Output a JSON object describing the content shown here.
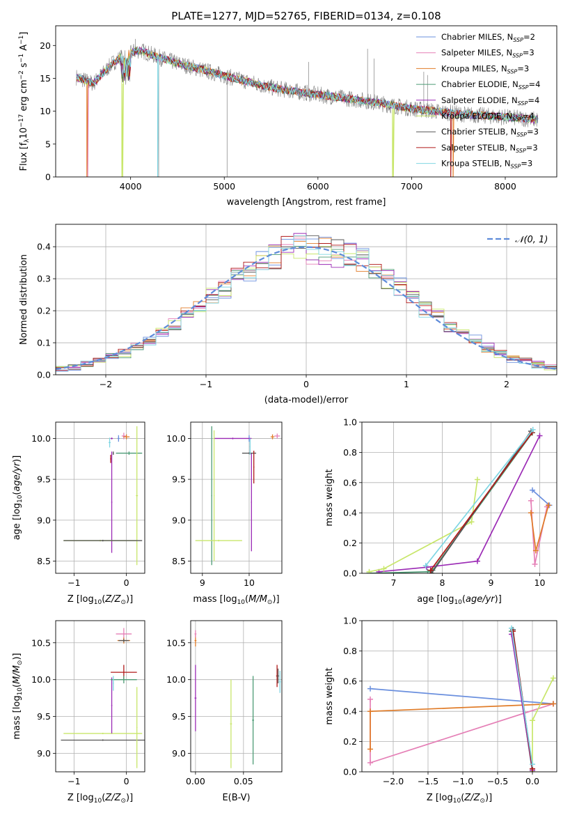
{
  "figure": {
    "title": "PLATE=1277, MJD=52765, FIBERID=0134, z=0.108"
  },
  "colors": {
    "Chabrier MILES": "#6a8fde",
    "Salpeter MILES": "#e57fb6",
    "Kroupa MILES": "#e07b27",
    "Chabrier ELODIE": "#4c9b75",
    "Salpeter ELODIE": "#9b2ab5",
    "Kroupa ELODIE": "#c8e66a",
    "Chabrier STELIB": "#555555",
    "Salpeter STELIB": "#b01818",
    "Kroupa STELIB": "#7fd6e3",
    "data": "#808080",
    "normal": "#5e8bd9"
  },
  "chart_data": [
    {
      "id": "spectrum",
      "type": "line",
      "xlabel": "wavelength [Angstrom, rest frame]",
      "ylabel": "Flux [f_λ 10^-17 erg cm^-2 s^-1 A^-1]",
      "xlim": [
        3200,
        8550
      ],
      "ylim": [
        0,
        23
      ],
      "xticks": [
        4000,
        5000,
        6000,
        7000,
        8000
      ],
      "yticks": [
        0,
        5,
        10,
        15,
        20
      ],
      "legend_position": "upper right",
      "legend": [
        {
          "main": "Chabrier MILES, N",
          "sub": "SSP",
          "tail": "=2",
          "series": "Chabrier MILES"
        },
        {
          "main": "Salpeter MILES, N",
          "sub": "SSP",
          "tail": "=3",
          "series": "Salpeter MILES"
        },
        {
          "main": "Kroupa MILES, N",
          "sub": "SSP",
          "tail": "=3",
          "series": "Kroupa MILES"
        },
        {
          "main": "Chabrier ELODIE, N",
          "sub": "SSP",
          "tail": "=4",
          "series": "Chabrier ELODIE"
        },
        {
          "main": "Salpeter ELODIE, N",
          "sub": "SSP",
          "tail": "=4",
          "series": "Salpeter ELODIE"
        },
        {
          "main": "Kroupa ELODIE, N",
          "sub": "SSP",
          "tail": "=4",
          "series": "Kroupa ELODIE"
        },
        {
          "main": "Chabrier STELIB, N",
          "sub": "SSP",
          "tail": "=3",
          "series": "Chabrier STELIB"
        },
        {
          "main": "Salpeter STELIB, N",
          "sub": "SSP",
          "tail": "=3",
          "series": "Salpeter STELIB"
        },
        {
          "main": "Kroupa STELIB, N",
          "sub": "SSP",
          "tail": "=3",
          "series": "Kroupa STELIB"
        }
      ],
      "continuum": {
        "x": [
          3420,
          3600,
          3800,
          3950,
          4100,
          4300,
          4500,
          5000,
          5500,
          6000,
          6500,
          7000,
          7500,
          8000,
          8350
        ],
        "y": [
          15.2,
          14.2,
          17.2,
          18.8,
          19.3,
          18.2,
          17.3,
          15.4,
          13.6,
          12.5,
          11.6,
          10.4,
          9.6,
          9.1,
          8.7
        ]
      },
      "data_spikes": [
        {
          "x": 5030,
          "y": 0
        },
        {
          "x": 4300,
          "y": 0
        },
        {
          "x": 6530,
          "y": 19.5
        },
        {
          "x": 6600,
          "y": 18
        },
        {
          "x": 7130,
          "y": 16
        },
        {
          "x": 7170,
          "y": 15.5
        },
        {
          "x": 4050,
          "y": 21
        },
        {
          "x": 5900,
          "y": 17.5
        }
      ],
      "model_drops": [
        {
          "series": "Salpeter MILES",
          "x": 3540,
          "y": 0
        },
        {
          "series": "Kroupa MILES",
          "x": 3530,
          "y": 0
        },
        {
          "series": "Kroupa ELODIE",
          "x": 3910,
          "y": 0
        },
        {
          "series": "Kroupa STELIB",
          "x": 4290,
          "y": 0
        },
        {
          "series": "Kroupa ELODIE",
          "x": 6800,
          "y": 0
        },
        {
          "series": "Salpeter STELIB",
          "x": 7420,
          "y": 0
        },
        {
          "series": "Kroupa MILES",
          "x": 7440,
          "y": 0
        }
      ]
    },
    {
      "id": "residuals",
      "type": "line",
      "xlabel": "(data-model)/error",
      "ylabel": "Normed distribution",
      "xlim": [
        -2.5,
        2.5
      ],
      "ylim": [
        0,
        0.47
      ],
      "xticks": [
        -2,
        -1,
        0,
        1,
        2
      ],
      "yticks": [
        0.0,
        0.1,
        0.2,
        0.3,
        0.4
      ],
      "legend": "𝒩(0, 1)",
      "legend_position": "upper right",
      "histogram_bins": 40,
      "normal_curve": {
        "mean": 0,
        "sigma": 1
      }
    },
    {
      "id": "age_vs_Z",
      "type": "scatter",
      "xlabel": "Z [log10(Z/Z⊙)]",
      "ylabel": "age [log10(age/yr)]",
      "xlim": [
        -1.35,
        0.35
      ],
      "ylim": [
        8.35,
        10.2
      ],
      "xticks": [
        -1,
        0
      ],
      "yticks": [
        8.5,
        9.0,
        9.5,
        10.0
      ],
      "points": [
        {
          "series": "Chabrier MILES",
          "x": -0.15,
          "y": 10.0,
          "xerr": 0.02,
          "yerr": 0.04
        },
        {
          "series": "Salpeter MILES",
          "x": -0.05,
          "y": 10.03,
          "xerr": 0.04,
          "yerr": 0.04
        },
        {
          "series": "Kroupa MILES",
          "x": 0.0,
          "y": 10.02,
          "xerr": 0.06,
          "yerr": 0.03
        },
        {
          "series": "Chabrier ELODIE",
          "x": 0.05,
          "y": 9.82,
          "xerr": 0.25,
          "yerr": 0.02
        },
        {
          "series": "Salpeter ELODIE",
          "x": -0.28,
          "y": 10.0,
          "xerr": 0.02,
          "yerr": 0.01
        },
        {
          "series": "Salpeter ELODIE",
          "x": -0.28,
          "y": 9.22,
          "xerr": 0.01,
          "yerr": 0.62
        },
        {
          "series": "Kroupa ELODIE",
          "x": 0.2,
          "y": 9.3,
          "xerr": 0.02,
          "yerr": 0.85
        },
        {
          "series": "Kroupa ELODIE",
          "x": -0.5,
          "y": 8.75,
          "xerr": 0.7,
          "yerr": 0.01
        },
        {
          "series": "Chabrier STELIB",
          "x": -0.45,
          "y": 8.75,
          "xerr": 0.75,
          "yerr": 0.01
        },
        {
          "series": "Chabrier STELIB",
          "x": -0.25,
          "y": 9.82,
          "xerr": 0.01,
          "yerr": 0.02
        },
        {
          "series": "Salpeter STELIB",
          "x": -0.3,
          "y": 9.75,
          "xerr": 0.01,
          "yerr": 0.05
        },
        {
          "series": "Kroupa STELIB",
          "x": -0.32,
          "y": 9.95,
          "xerr": 0.02,
          "yerr": 0.06
        }
      ]
    },
    {
      "id": "age_vs_mass",
      "type": "scatter",
      "xlabel": "mass [log10(M/M⊙)]",
      "ylabel": "",
      "xlim": [
        8.75,
        10.7
      ],
      "ylim": [
        8.35,
        10.2
      ],
      "xticks": [
        9,
        10
      ],
      "yticks": [
        8.5,
        9.0,
        9.5,
        10.0
      ],
      "points": [
        {
          "series": "Chabrier MILES",
          "x": 10.0,
          "y": 10.0,
          "xerr": 0.02,
          "yerr": 0.04
        },
        {
          "series": "Salpeter MILES",
          "x": 10.6,
          "y": 10.03,
          "xerr": 0.06,
          "yerr": 0.03
        },
        {
          "series": "Kroupa MILES",
          "x": 10.5,
          "y": 10.02,
          "xerr": 0.04,
          "yerr": 0.03
        },
        {
          "series": "Chabrier ELODIE",
          "x": 9.2,
          "y": 9.3,
          "xerr": 0.01,
          "yerr": 0.85
        },
        {
          "series": "Salpeter ELODIE",
          "x": 9.65,
          "y": 10.0,
          "xerr": 0.4,
          "yerr": 0.01
        },
        {
          "series": "Salpeter ELODIE",
          "x": 10.05,
          "y": 9.22,
          "xerr": 0.01,
          "yerr": 0.6
        },
        {
          "series": "Kroupa ELODIE",
          "x": 9.25,
          "y": 9.3,
          "xerr": 0.01,
          "yerr": 0.8
        },
        {
          "series": "Kroupa ELODIE",
          "x": 9.35,
          "y": 8.75,
          "xerr": 0.5,
          "yerr": 0.01
        },
        {
          "series": "Chabrier STELIB",
          "x": 10.0,
          "y": 9.82,
          "xerr": 0.15,
          "yerr": 0.01
        },
        {
          "series": "Salpeter STELIB",
          "x": 10.1,
          "y": 9.65,
          "xerr": 0.01,
          "yerr": 0.2
        },
        {
          "series": "Kroupa STELIB",
          "x": 10.02,
          "y": 9.9,
          "xerr": 0.01,
          "yerr": 0.1
        }
      ]
    },
    {
      "id": "weight_vs_age",
      "type": "line",
      "xlabel": "age [log10(age/yr)]",
      "ylabel": "mass weight",
      "xlim": [
        6.35,
        10.35
      ],
      "ylim": [
        0,
        1.0
      ],
      "xticks": [
        7,
        8,
        9,
        10
      ],
      "yticks": [
        0.0,
        0.2,
        0.4,
        0.6,
        0.8,
        1.0
      ],
      "series": [
        {
          "name": "Chabrier MILES",
          "x": [
            9.85,
            10.2
          ],
          "y": [
            0.55,
            0.45
          ]
        },
        {
          "name": "Salpeter MILES",
          "x": [
            9.82,
            9.9,
            10.15
          ],
          "y": [
            0.48,
            0.06,
            0.44
          ]
        },
        {
          "name": "Kroupa MILES",
          "x": [
            9.82,
            9.92,
            10.18
          ],
          "y": [
            0.4,
            0.15,
            0.45
          ]
        },
        {
          "name": "Chabrier ELODIE",
          "x": [
            6.5,
            7.7,
            7.8,
            9.85
          ],
          "y": [
            0.0,
            0.01,
            0.02,
            0.93
          ]
        },
        {
          "name": "Salpeter ELODIE",
          "x": [
            6.7,
            7.68,
            8.72,
            10.0
          ],
          "y": [
            0.01,
            0.04,
            0.08,
            0.91
          ]
        },
        {
          "name": "Kroupa ELODIE",
          "x": [
            6.5,
            6.8,
            8.6,
            8.72
          ],
          "y": [
            0.01,
            0.03,
            0.34,
            0.62
          ]
        },
        {
          "name": "Chabrier STELIB",
          "x": [
            7.78,
            9.82
          ],
          "y": [
            0.0,
            0.94
          ]
        },
        {
          "name": "Salpeter STELIB",
          "x": [
            7.76,
            9.84
          ],
          "y": [
            0.02,
            0.93
          ]
        },
        {
          "name": "Kroupa STELIB",
          "x": [
            7.66,
            9.86
          ],
          "y": [
            0.05,
            0.95
          ]
        }
      ]
    },
    {
      "id": "mass_vs_Z",
      "type": "scatter",
      "xlabel": "Z [log10(Z/Z⊙)]",
      "ylabel": "mass [log10(M/M⊙)]",
      "xlim": [
        -1.35,
        0.35
      ],
      "ylim": [
        8.75,
        10.8
      ],
      "xticks": [
        -1,
        0
      ],
      "yticks": [
        9.0,
        9.5,
        10.0,
        10.5
      ],
      "points": [
        {
          "series": "Salpeter MILES",
          "x": -0.05,
          "y": 10.62,
          "xerr": 0.15,
          "yerr": 0.08
        },
        {
          "series": "Kroupa MILES",
          "x": -0.05,
          "y": 10.53,
          "xerr": 0.12,
          "yerr": 0.04
        },
        {
          "series": "Chabrier STELIB",
          "x": -0.05,
          "y": 10.53,
          "xerr": 0.1,
          "yerr": 0.02
        },
        {
          "series": "Kroupa ELODIE",
          "x": -0.45,
          "y": 9.27,
          "xerr": 0.75,
          "yerr": 0.01
        },
        {
          "series": "Chabrier STELIB",
          "x": -0.45,
          "y": 9.18,
          "xerr": 0.8,
          "yerr": 0.01
        },
        {
          "series": "Salpeter ELODIE",
          "x": -0.28,
          "y": 9.65,
          "xerr": 0.01,
          "yerr": 0.38
        },
        {
          "series": "Kroupa ELODIE",
          "x": 0.2,
          "y": 9.35,
          "xerr": 0.01,
          "yerr": 0.55
        },
        {
          "series": "Salpeter STELIB",
          "x": -0.05,
          "y": 10.1,
          "xerr": 0.25,
          "yerr": 0.1
        },
        {
          "series": "Chabrier ELODIE",
          "x": -0.05,
          "y": 10.0,
          "xerr": 0.25,
          "yerr": 0.05
        },
        {
          "series": "Kroupa STELIB",
          "x": -0.25,
          "y": 9.95,
          "xerr": 0.01,
          "yerr": 0.1
        }
      ]
    },
    {
      "id": "mass_vs_ebv",
      "type": "scatter",
      "xlabel": "E(B-V)",
      "ylabel": "",
      "xlim": [
        -0.005,
        0.09
      ],
      "ylim": [
        8.75,
        10.8
      ],
      "xticks": [
        0.0,
        0.05
      ],
      "yticks": [
        9.0,
        9.5,
        10.0,
        10.5
      ],
      "points": [
        {
          "series": "Kroupa MILES",
          "x": 0.0,
          "y": 10.53,
          "xerr": 0.001,
          "yerr": 0.08
        },
        {
          "series": "Salpeter MILES",
          "x": 0.0,
          "y": 10.62,
          "xerr": 0.001,
          "yerr": 0.05
        },
        {
          "series": "Salpeter ELODIE",
          "x": 0.0,
          "y": 9.75,
          "xerr": 0.001,
          "yerr": 0.45
        },
        {
          "series": "Kroupa ELODIE",
          "x": 0.037,
          "y": 9.4,
          "xerr": 0.001,
          "yerr": 0.6
        },
        {
          "series": "Chabrier ELODIE",
          "x": 0.06,
          "y": 9.45,
          "xerr": 0.001,
          "yerr": 0.6
        },
        {
          "series": "Salpeter STELIB",
          "x": 0.085,
          "y": 10.05,
          "xerr": 0.001,
          "yerr": 0.15
        },
        {
          "series": "Kroupa STELIB",
          "x": 0.088,
          "y": 9.97,
          "xerr": 0.001,
          "yerr": 0.15
        },
        {
          "series": "Chabrier STELIB",
          "x": 0.086,
          "y": 10.05,
          "xerr": 0.001,
          "yerr": 0.1
        }
      ]
    },
    {
      "id": "weight_vs_Z",
      "type": "line",
      "xlabel": "Z [log10(Z/Z⊙)]",
      "ylabel": "mass weight",
      "xlim": [
        -2.45,
        0.35
      ],
      "ylim": [
        0,
        1.0
      ],
      "xticks": [
        -2.0,
        -1.5,
        -1.0,
        -0.5,
        0.0
      ],
      "yticks": [
        0.0,
        0.2,
        0.4,
        0.6,
        0.8,
        1.0
      ],
      "series": [
        {
          "name": "Chabrier MILES",
          "x": [
            -2.33,
            0.3
          ],
          "y": [
            0.55,
            0.45
          ]
        },
        {
          "name": "Salpeter MILES",
          "x": [
            -2.33,
            -2.33,
            0.3
          ],
          "y": [
            0.48,
            0.06,
            0.45
          ]
        },
        {
          "name": "Kroupa MILES",
          "x": [
            -2.33,
            -2.33,
            0.3
          ],
          "y": [
            0.15,
            0.4,
            0.45
          ]
        },
        {
          "name": "Chabrier ELODIE",
          "x": [
            -0.3,
            0.0
          ],
          "y": [
            0.93,
            0.0
          ]
        },
        {
          "name": "Salpeter ELODIE",
          "x": [
            -0.3,
            0.0
          ],
          "y": [
            0.91,
            0.01
          ]
        },
        {
          "name": "Kroupa ELODIE",
          "x": [
            0.0,
            0.0,
            0.3
          ],
          "y": [
            0.0,
            0.34,
            0.62
          ]
        },
        {
          "name": "Chabrier STELIB",
          "x": [
            -0.28,
            0.0
          ],
          "y": [
            0.94,
            0.02
          ]
        },
        {
          "name": "Salpeter STELIB",
          "x": [
            -0.28,
            0.0
          ],
          "y": [
            0.93,
            0.02
          ]
        },
        {
          "name": "Kroupa STELIB",
          "x": [
            -0.3,
            0.0
          ],
          "y": [
            0.95,
            0.05
          ]
        }
      ]
    }
  ]
}
